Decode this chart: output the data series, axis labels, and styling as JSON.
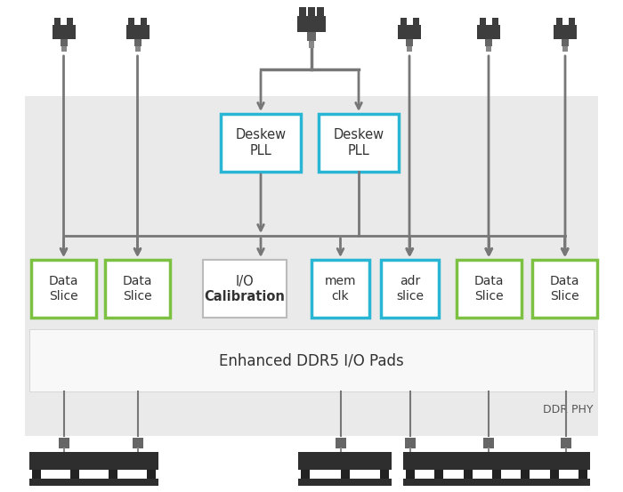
{
  "bg_gray": "#eaeaea",
  "bg_white": "#ffffff",
  "pads_white": "#f8f8f8",
  "deskew_color": "#29b6d4",
  "data_slice_color": "#7dc142",
  "mem_adr_color": "#29b6d4",
  "cal_border": "#aaaaaa",
  "arrow_color": "#777777",
  "chip_dark": "#3d3d3d",
  "chip_mid": "#666666",
  "chip_light": "#888888",
  "pcb_dark": "#2e2e2e",
  "pcb_notch": "#222222",
  "text_dark": "#333333",
  "text_mid": "#555555",
  "pads_label": "Enhanced DDR5 I/O Pads",
  "ddr_phy_label": "DDR PHY",
  "deskew_label": "Deskew\nPLL",
  "data_slice_label": "Data\nSlice",
  "cal_label_top": "I/O",
  "cal_label_bot": "Calibration",
  "memclk_label": "mem\nclk",
  "adr_label": "adr\nslice"
}
